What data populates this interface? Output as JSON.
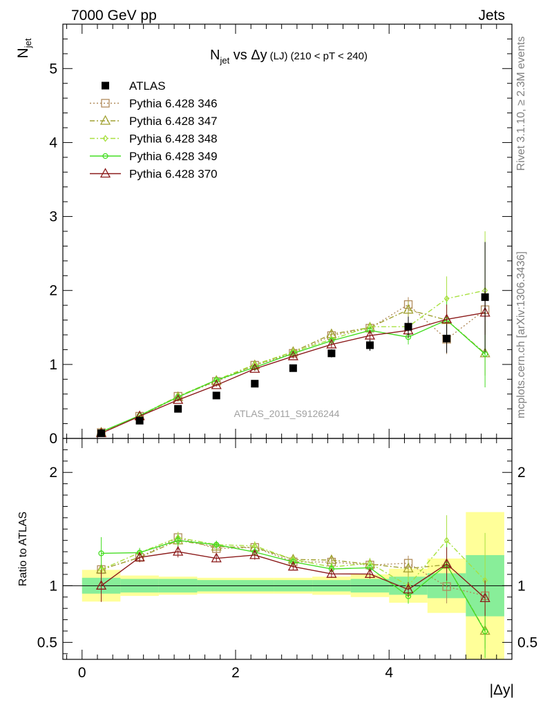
{
  "header": {
    "left": "7000 GeV pp",
    "right": "Jets"
  },
  "side": {
    "rivet": "Rivet 3.1.10, ≥ 2.3M events",
    "mcplots": "mcplots.cern.ch [arXiv:1306.3436]"
  },
  "chart_data": {
    "type": "scatter",
    "title_main": "N",
    "title_sub": "jet",
    "title_vs": " vs Δy",
    "title_small": "(LJ)",
    "title_range": "(210 < pT < 240)",
    "ylabel_main": "N",
    "ylabel_sub": "jet",
    "xlabel": "|Δy|",
    "ratio_ylabel": "Ratio to ATLAS",
    "watermark": "ATLAS_2011_S9126244",
    "xlim": [
      -0.25,
      5.6
    ],
    "ylim_main": [
      0,
      5.6
    ],
    "ylim_ratio": [
      0.35,
      2.3
    ],
    "x": [
      0.25,
      0.75,
      1.25,
      1.75,
      2.25,
      2.75,
      3.25,
      3.75,
      4.25,
      4.75,
      5.25
    ],
    "bin_edges": [
      0,
      0.5,
      1.0,
      1.5,
      2.0,
      2.5,
      3.0,
      3.5,
      4.0,
      4.5,
      5.0,
      5.5
    ],
    "main_ticks": [
      "0",
      "1",
      "2",
      "3",
      "4",
      "5"
    ],
    "ratio_ticks": [
      "0.5",
      "1",
      "2"
    ],
    "x_ticks": [
      "0",
      "2",
      "4"
    ],
    "data": {
      "name": "ATLAS",
      "y": [
        0.07,
        0.24,
        0.4,
        0.58,
        0.74,
        0.95,
        1.15,
        1.26,
        1.51,
        1.35,
        1.91
      ],
      "band_inner": [
        0.07,
        0.06,
        0.06,
        0.05,
        0.05,
        0.05,
        0.05,
        0.06,
        0.08,
        0.11,
        0.27
      ],
      "band_outer": [
        0.14,
        0.09,
        0.08,
        0.07,
        0.07,
        0.07,
        0.08,
        0.1,
        0.15,
        0.24,
        0.65
      ]
    },
    "series": [
      {
        "name": "Pythia 6.428 346",
        "color": "#b08a5a",
        "dash": "2,3",
        "marker": "square",
        "y": [
          0.08,
          0.3,
          0.57,
          0.77,
          0.99,
          1.15,
          1.39,
          1.49,
          1.81,
          1.34,
          1.74
        ],
        "yerr": [
          0.01,
          0.01,
          0.02,
          0.02,
          0.03,
          0.03,
          0.05,
          0.06,
          0.1,
          0.2,
          0.3
        ]
      },
      {
        "name": "Pythia 6.428 347",
        "color": "#a0a030",
        "dash": "7,3,2,3",
        "marker": "triangle",
        "y": [
          0.08,
          0.3,
          0.56,
          0.78,
          0.99,
          1.17,
          1.41,
          1.5,
          1.74,
          1.6,
          1.15
        ],
        "yerr": [
          0.01,
          0.01,
          0.02,
          0.02,
          0.03,
          0.03,
          0.05,
          0.06,
          0.12,
          0.2,
          0.3
        ]
      },
      {
        "name": "Pythia 6.428 348",
        "color": "#a8e040",
        "dash": "7,3,2,3",
        "marker": "diamond",
        "y": [
          0.08,
          0.31,
          0.57,
          0.79,
          1.0,
          1.17,
          1.34,
          1.51,
          1.51,
          1.89,
          2.0
        ],
        "yerr": [
          0.01,
          0.01,
          0.02,
          0.02,
          0.03,
          0.03,
          0.05,
          0.06,
          0.12,
          0.3,
          0.8
        ]
      },
      {
        "name": "Pythia 6.428 349",
        "color": "#44dd22",
        "dash": "",
        "marker": "circle",
        "y": [
          0.09,
          0.31,
          0.56,
          0.79,
          0.96,
          1.15,
          1.32,
          1.46,
          1.37,
          1.6,
          1.14
        ],
        "yerr": [
          0.01,
          0.01,
          0.02,
          0.02,
          0.03,
          0.03,
          0.05,
          0.06,
          0.1,
          0.25,
          0.45
        ]
      },
      {
        "name": "Pythia 6.428 370",
        "color": "#8b1a1a",
        "dash": "",
        "marker": "triangle",
        "y": [
          0.07,
          0.3,
          0.52,
          0.72,
          0.94,
          1.11,
          1.27,
          1.39,
          1.46,
          1.61,
          1.7
        ],
        "yerr": [
          0.01,
          0.01,
          0.02,
          0.02,
          0.03,
          0.03,
          0.04,
          0.05,
          0.1,
          0.2,
          0.3
        ]
      }
    ],
    "band_colors": {
      "inner": "#88ee99",
      "outer": "#ffff99"
    }
  }
}
